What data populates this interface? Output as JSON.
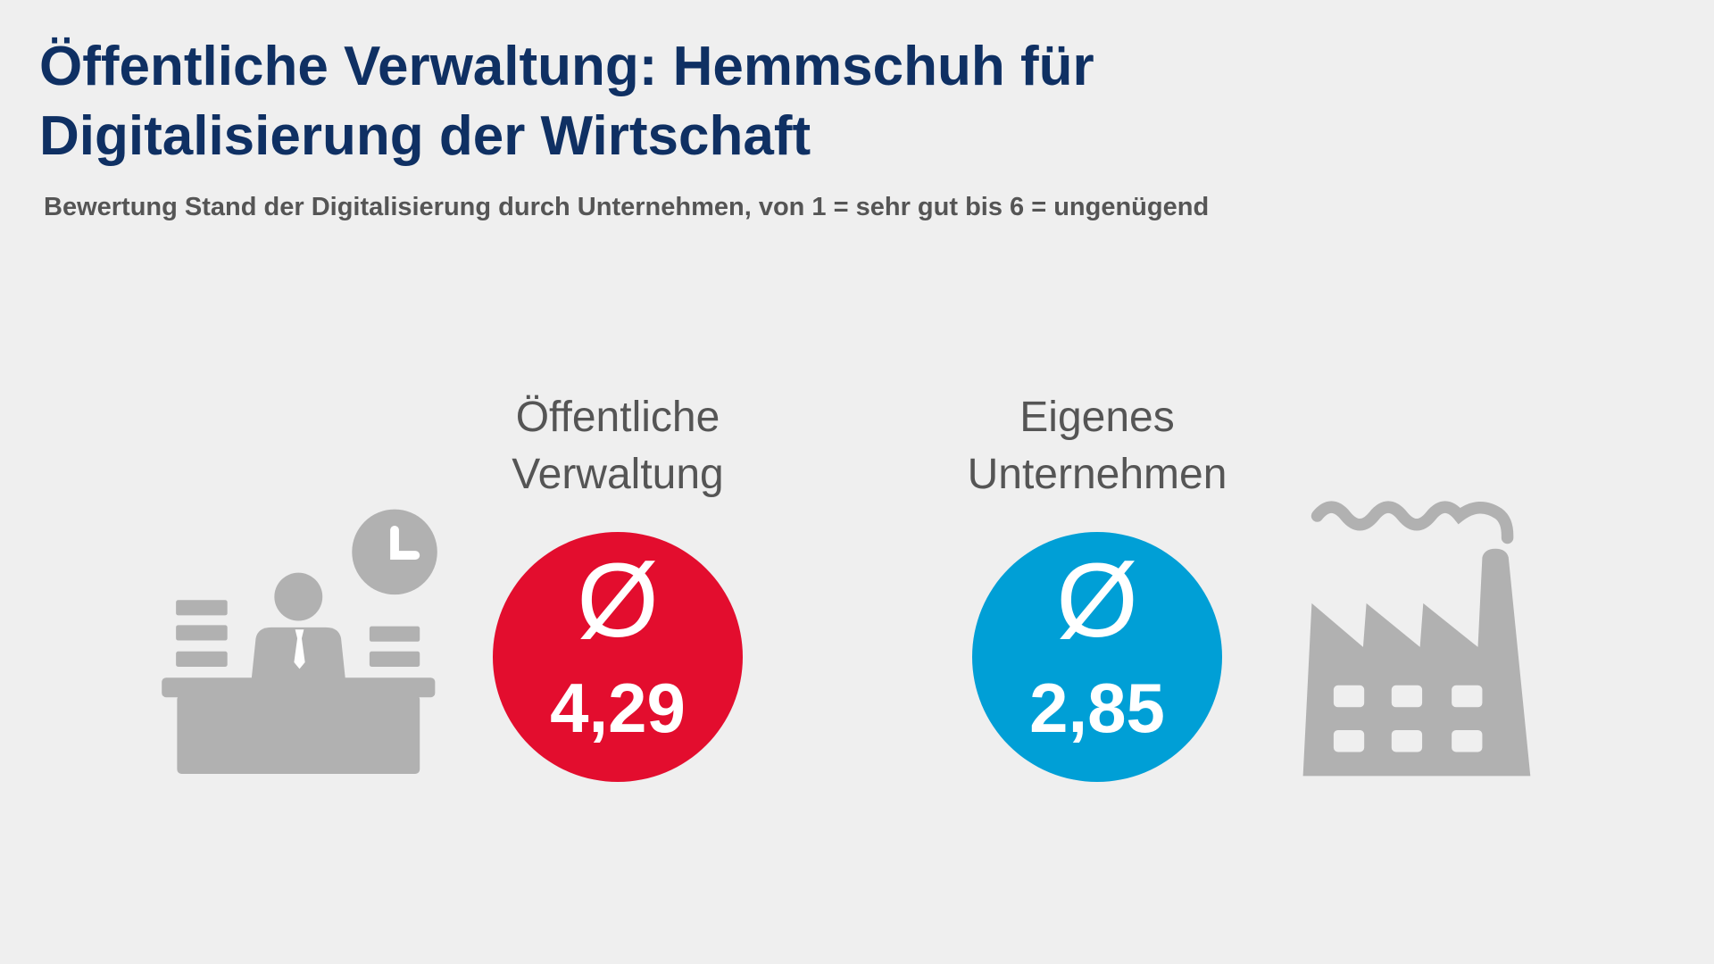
{
  "chart_data": {
    "type": "stat",
    "title": "Öffentliche Verwaltung: Hemmschuh für Digitalisierung der Wirtschaft",
    "subtitle": "Bewertung Stand der Digitalisierung durch Unternehmen, von 1 = sehr gut bis 6 = ungenügend",
    "symbol": "Ø",
    "categories": [
      "Öffentliche Verwaltung",
      "Eigenes Unternehmen"
    ],
    "values": [
      4.29,
      2.85
    ],
    "value_labels": [
      "4,29",
      "2,85"
    ],
    "colors": [
      "#e30d2e",
      "#009fd6"
    ]
  }
}
